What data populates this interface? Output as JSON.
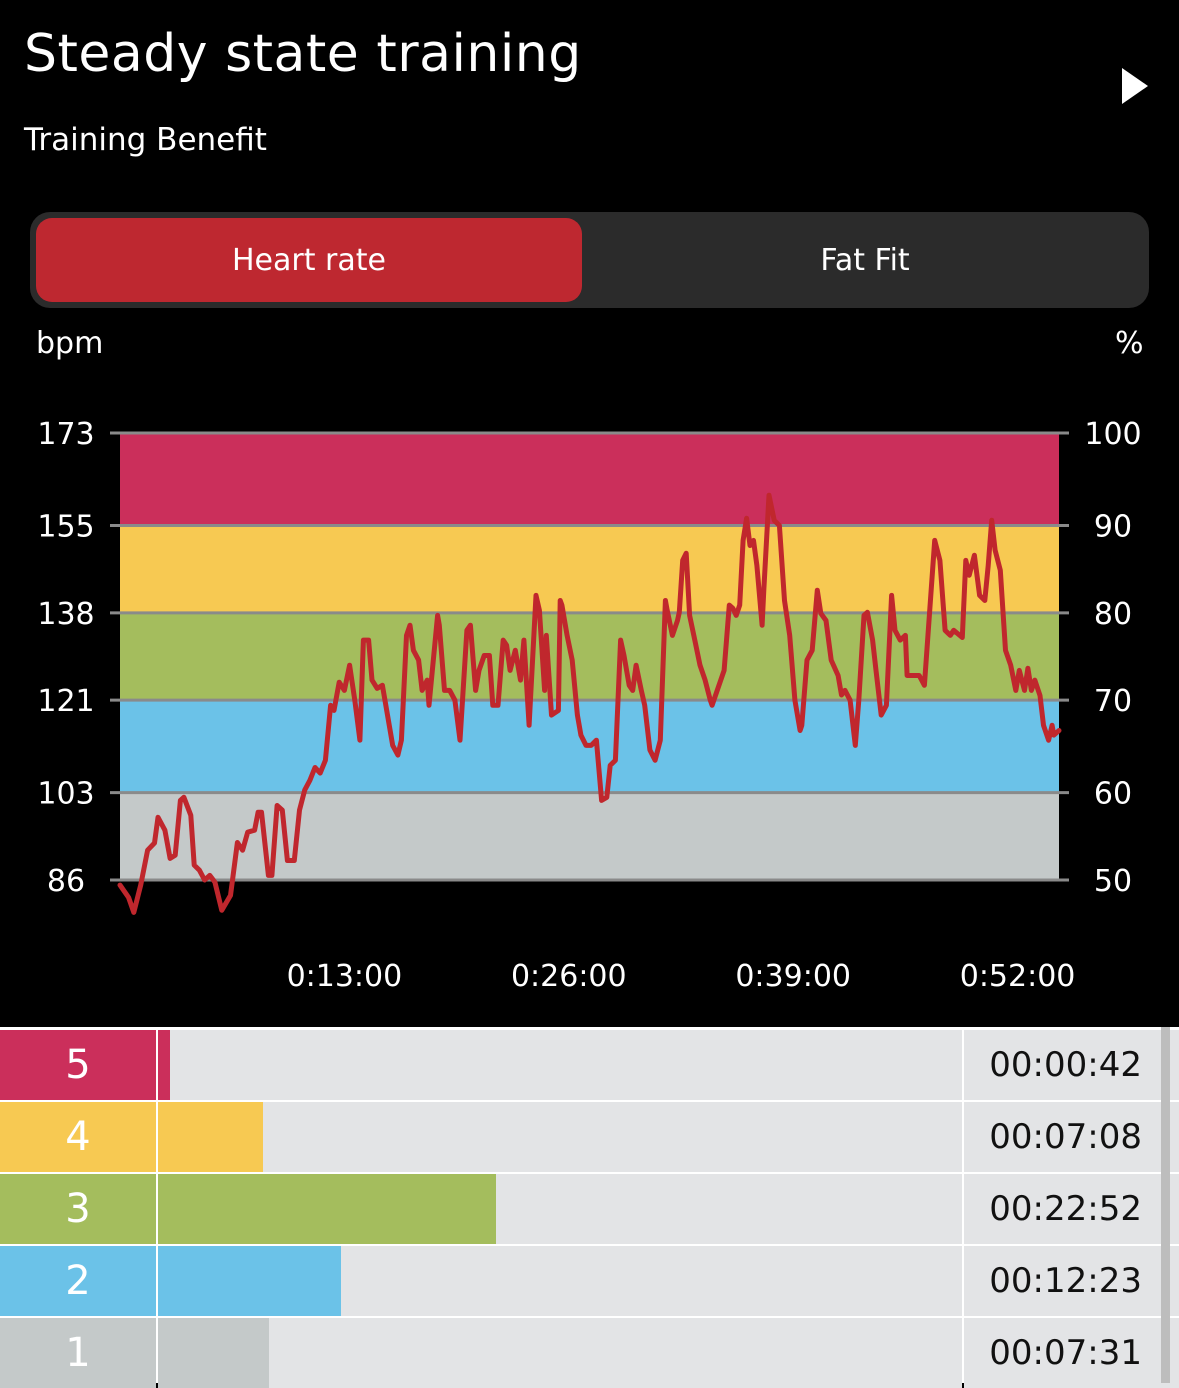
{
  "header": {
    "title": "Steady state training",
    "subtitle": "Training Benefit",
    "next_icon": "play-triangle-icon"
  },
  "tabs": [
    {
      "label": "Heart rate",
      "active": true
    },
    {
      "label": "Fat Fit",
      "active": false
    }
  ],
  "colors": {
    "zone5": "#cb2f5b",
    "zone4": "#f7c952",
    "zone3": "#a4bd5d",
    "zone2": "#6bc2e8",
    "zone1": "#c4c9c9",
    "line": "#c0272d",
    "tab_active": "#be2830"
  },
  "chart_data": {
    "type": "line",
    "left_unit": "bpm",
    "right_unit": "%",
    "ylim": [
      86,
      173
    ],
    "y_ticks_bpm": [
      "173",
      "155",
      "138",
      "121",
      "103",
      "86"
    ],
    "y_ticks_percent": [
      "100",
      "90",
      "80",
      "70",
      "60",
      "50"
    ],
    "zone_bounds_bpm": [
      86,
      103,
      121,
      138,
      155,
      173
    ],
    "x_ticks": [
      {
        "label": "0:13:00",
        "minutes": 13
      },
      {
        "label": "0:26:00",
        "minutes": 26
      },
      {
        "label": "0:39:00",
        "minutes": 39
      },
      {
        "label": "0:52:00",
        "minutes": 52
      }
    ],
    "xlim_minutes": [
      0,
      54.4
    ],
    "series": [
      {
        "name": "Heart rate",
        "points": [
          [
            0.0,
            85
          ],
          [
            0.5,
            82.6
          ],
          [
            0.8,
            79.7
          ],
          [
            1.2,
            85
          ],
          [
            1.6,
            91.8
          ],
          [
            2.0,
            93.2
          ],
          [
            2.2,
            98.2
          ],
          [
            2.6,
            95.7
          ],
          [
            2.9,
            90.2
          ],
          [
            3.2,
            90.8
          ],
          [
            3.5,
            101.5
          ],
          [
            3.7,
            102.1
          ],
          [
            4.1,
            98.6
          ],
          [
            4.3,
            88.9
          ],
          [
            4.6,
            87.9
          ],
          [
            4.9,
            86
          ],
          [
            5.2,
            86.9
          ],
          [
            5.5,
            85.6
          ],
          [
            5.9,
            80.1
          ],
          [
            6.4,
            83
          ],
          [
            6.8,
            93.3
          ],
          [
            7.1,
            91.8
          ],
          [
            7.4,
            95.3
          ],
          [
            7.8,
            95.7
          ],
          [
            8.0,
            99.2
          ],
          [
            8.2,
            99.2
          ],
          [
            8.6,
            86.9
          ],
          [
            8.8,
            86.9
          ],
          [
            9.1,
            100.5
          ],
          [
            9.4,
            99.6
          ],
          [
            9.7,
            89.8
          ],
          [
            10.1,
            89.8
          ],
          [
            10.4,
            99.6
          ],
          [
            10.7,
            103.5
          ],
          [
            11.0,
            105.4
          ],
          [
            11.3,
            107.9
          ],
          [
            11.6,
            106.8
          ],
          [
            11.9,
            109.3
          ],
          [
            12.2,
            120
          ],
          [
            12.4,
            119
          ],
          [
            12.7,
            124.5
          ],
          [
            13.0,
            122.9
          ],
          [
            13.3,
            127.8
          ],
          [
            13.6,
            121
          ],
          [
            13.9,
            113.2
          ],
          [
            14.1,
            132.7
          ],
          [
            14.4,
            132.7
          ],
          [
            14.6,
            124.9
          ],
          [
            14.9,
            123.3
          ],
          [
            15.2,
            123.9
          ],
          [
            15.5,
            118.1
          ],
          [
            15.8,
            112.2
          ],
          [
            16.1,
            110.3
          ],
          [
            16.3,
            113.2
          ],
          [
            16.6,
            133.6
          ],
          [
            16.8,
            135.6
          ],
          [
            17.0,
            130.7
          ],
          [
            17.3,
            128.8
          ],
          [
            17.5,
            122.9
          ],
          [
            17.8,
            124.9
          ],
          [
            17.9,
            120
          ],
          [
            18.4,
            137.5
          ],
          [
            18.5,
            135.6
          ],
          [
            18.8,
            122.9
          ],
          [
            19.1,
            122.9
          ],
          [
            19.4,
            121
          ],
          [
            19.7,
            113.2
          ],
          [
            20.1,
            134.6
          ],
          [
            20.3,
            135.6
          ],
          [
            20.6,
            122.9
          ],
          [
            20.8,
            126.8
          ],
          [
            21.1,
            129.7
          ],
          [
            21.4,
            129.7
          ],
          [
            21.6,
            120
          ],
          [
            21.9,
            120
          ],
          [
            22.2,
            132.7
          ],
          [
            22.4,
            131.7
          ],
          [
            22.6,
            126.8
          ],
          [
            22.9,
            130.7
          ],
          [
            23.2,
            124.9
          ],
          [
            23.4,
            132.7
          ],
          [
            23.7,
            116.1
          ],
          [
            24.1,
            141.4
          ],
          [
            24.3,
            138.5
          ],
          [
            24.6,
            122.9
          ],
          [
            24.7,
            133.6
          ],
          [
            25.0,
            118.1
          ],
          [
            25.4,
            119
          ],
          [
            25.5,
            140.4
          ],
          [
            25.6,
            139.5
          ],
          [
            25.9,
            133.6
          ],
          [
            26.2,
            128.8
          ],
          [
            26.5,
            118.1
          ],
          [
            26.7,
            114.2
          ],
          [
            27.0,
            112.2
          ],
          [
            27.3,
            112.2
          ],
          [
            27.6,
            113.2
          ],
          [
            27.9,
            101.5
          ],
          [
            28.2,
            102.1
          ],
          [
            28.4,
            108.3
          ],
          [
            28.7,
            109.3
          ],
          [
            29.0,
            132.7
          ],
          [
            29.2,
            129.7
          ],
          [
            29.5,
            123.9
          ],
          [
            29.7,
            122.9
          ],
          [
            29.9,
            127.8
          ],
          [
            30.2,
            122.9
          ],
          [
            30.4,
            120
          ],
          [
            30.7,
            111.3
          ],
          [
            31.0,
            109.3
          ],
          [
            31.3,
            113.2
          ],
          [
            31.6,
            140.4
          ],
          [
            31.7,
            138.5
          ],
          [
            32.0,
            133.6
          ],
          [
            32.3,
            136.5
          ],
          [
            32.4,
            138.1
          ],
          [
            32.6,
            148.2
          ],
          [
            32.8,
            149.6
          ],
          [
            33.0,
            137.5
          ],
          [
            33.3,
            132.7
          ],
          [
            33.6,
            127.8
          ],
          [
            33.9,
            124.9
          ],
          [
            34.2,
            121
          ],
          [
            34.3,
            120
          ],
          [
            34.6,
            122.9
          ],
          [
            35.0,
            126.8
          ],
          [
            35.3,
            139.5
          ],
          [
            35.5,
            138.9
          ],
          [
            35.7,
            137.5
          ],
          [
            35.9,
            139.5
          ],
          [
            36.1,
            152.1
          ],
          [
            36.3,
            156.4
          ],
          [
            36.5,
            151.1
          ],
          [
            36.7,
            152.1
          ],
          [
            36.9,
            147.2
          ],
          [
            37.2,
            135.6
          ],
          [
            37.3,
            142.4
          ],
          [
            37.6,
            160.9
          ],
          [
            37.9,
            156
          ],
          [
            38.2,
            155
          ],
          [
            38.5,
            140.4
          ],
          [
            38.8,
            133.6
          ],
          [
            39.1,
            121
          ],
          [
            39.4,
            115.1
          ],
          [
            39.5,
            116.1
          ],
          [
            39.8,
            128.8
          ],
          [
            40.1,
            130.7
          ],
          [
            40.4,
            142.4
          ],
          [
            40.6,
            137.9
          ],
          [
            40.9,
            136.5
          ],
          [
            41.2,
            128.8
          ],
          [
            41.6,
            125.8
          ],
          [
            41.8,
            122
          ],
          [
            42.0,
            122.9
          ],
          [
            42.3,
            121
          ],
          [
            42.6,
            112.2
          ],
          [
            42.8,
            121
          ],
          [
            43.1,
            137.5
          ],
          [
            43.3,
            138.1
          ],
          [
            43.6,
            132.7
          ],
          [
            43.8,
            126.8
          ],
          [
            44.1,
            118.1
          ],
          [
            44.4,
            120
          ],
          [
            44.7,
            141.4
          ],
          [
            44.9,
            134.6
          ],
          [
            45.2,
            132.7
          ],
          [
            45.5,
            133.6
          ],
          [
            45.6,
            125.8
          ],
          [
            46.0,
            125.8
          ],
          [
            46.3,
            125.8
          ],
          [
            46.6,
            123.9
          ],
          [
            47.2,
            152.1
          ],
          [
            47.5,
            148.2
          ],
          [
            47.8,
            134.6
          ],
          [
            48.1,
            133.6
          ],
          [
            48.3,
            134.6
          ],
          [
            48.8,
            133.2
          ],
          [
            49.0,
            148.2
          ],
          [
            49.2,
            145.3
          ],
          [
            49.5,
            149.2
          ],
          [
            49.8,
            141.4
          ],
          [
            50.1,
            140.4
          ],
          [
            50.3,
            147.2
          ],
          [
            50.5,
            156
          ],
          [
            50.7,
            150.2
          ],
          [
            51.0,
            146.3
          ],
          [
            51.3,
            130.7
          ],
          [
            51.6,
            127.8
          ],
          [
            51.9,
            122.9
          ],
          [
            52.1,
            126.8
          ],
          [
            52.4,
            122.9
          ],
          [
            52.6,
            127.2
          ],
          [
            52.8,
            122.9
          ],
          [
            53.0,
            124.9
          ],
          [
            53.3,
            121.9
          ],
          [
            53.5,
            116.1
          ],
          [
            53.8,
            113.2
          ],
          [
            54.0,
            116.1
          ],
          [
            54.1,
            114.2
          ],
          [
            54.4,
            115.1
          ]
        ]
      }
    ]
  },
  "zones": [
    {
      "zone": "5",
      "time": "00:00:42",
      "seconds": 42,
      "color": "#cb2f5b"
    },
    {
      "zone": "4",
      "time": "00:07:08",
      "seconds": 428,
      "color": "#f7c952"
    },
    {
      "zone": "3",
      "time": "00:22:52",
      "seconds": 1372,
      "color": "#a4bd5d"
    },
    {
      "zone": "2",
      "time": "00:12:23",
      "seconds": 743,
      "color": "#6bc2e8"
    },
    {
      "zone": "1",
      "time": "00:07:31",
      "seconds": 451,
      "color": "#c4c9c9"
    }
  ]
}
